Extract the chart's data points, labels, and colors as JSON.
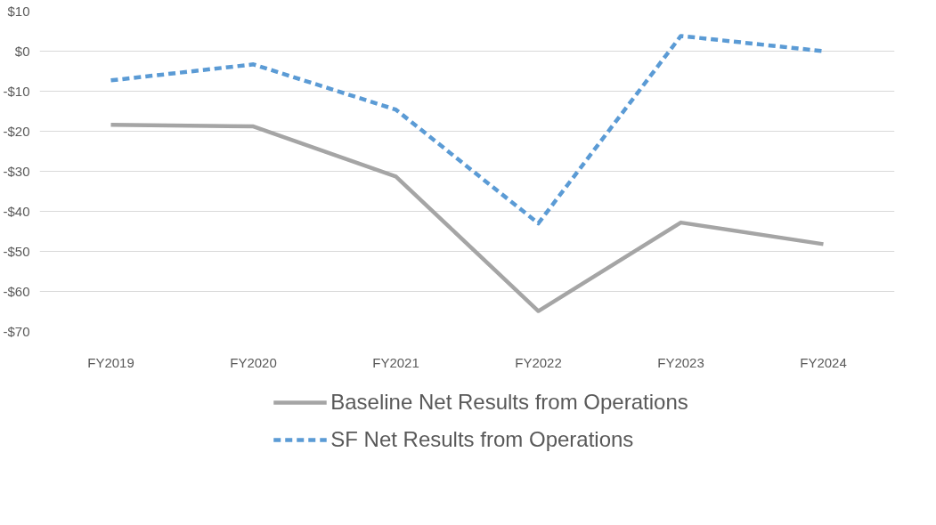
{
  "chart_data": {
    "type": "line",
    "categories": [
      "FY2019",
      "FY2020",
      "FY2021",
      "FY2022",
      "FY2023",
      "FY2024"
    ],
    "series": [
      {
        "name": "Baseline Net Results from Operations",
        "color": "#a5a5a5",
        "line_style": "solid",
        "values": [
          -18.4,
          -18.8,
          -31.3,
          -64.9,
          -42.8,
          -48.2
        ]
      },
      {
        "name": "SF Net Results from Operations",
        "color": "#5b9bd5",
        "line_style": "dashed",
        "values": [
          -7.3,
          -3.3,
          -14.6,
          -43.0,
          3.8,
          0
        ]
      }
    ],
    "ylim": [
      -70,
      10
    ],
    "yticks": [
      {
        "value": 10,
        "label": "$10"
      },
      {
        "value": 0,
        "label": "$0"
      },
      {
        "value": -10,
        "label": "-$10"
      },
      {
        "value": -20,
        "label": "-$20"
      },
      {
        "value": -30,
        "label": "-$30"
      },
      {
        "value": -40,
        "label": "-$40"
      },
      {
        "value": -50,
        "label": "-$50"
      },
      {
        "value": -60,
        "label": "-$60"
      },
      {
        "value": -70,
        "label": "-$70"
      }
    ],
    "grid": "y",
    "legend": "bottom",
    "marker": "none"
  }
}
